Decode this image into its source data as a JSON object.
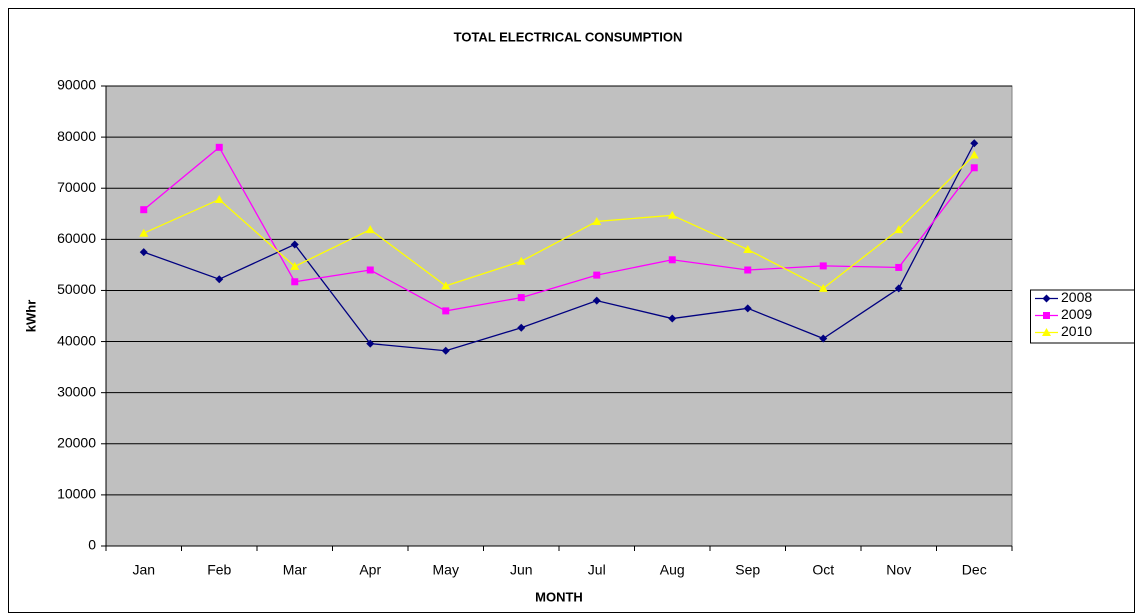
{
  "chart_data": {
    "type": "line",
    "title": "TOTAL ELECTRICAL CONSUMPTION",
    "x_label": "MONTH",
    "y_label": "kWhr",
    "categories": [
      "Jan",
      "Feb",
      "Mar",
      "Apr",
      "May",
      "Jun",
      "Jul",
      "Aug",
      "Sep",
      "Oct",
      "Nov",
      "Dec"
    ],
    "series": [
      {
        "name": "2008",
        "color": "#000080",
        "marker": "diamond",
        "values": [
          57500,
          52200,
          59000,
          39600,
          38200,
          42700,
          48000,
          44500,
          46500,
          40600,
          50400,
          78800
        ]
      },
      {
        "name": "2009",
        "color": "#ff00ff",
        "marker": "square",
        "values": [
          65800,
          78000,
          51700,
          54000,
          46000,
          48600,
          53000,
          56000,
          54000,
          54800,
          54500,
          74000
        ]
      },
      {
        "name": "2010",
        "color": "#ffff00",
        "marker": "triangle",
        "values": [
          61200,
          67800,
          54700,
          61900,
          50900,
          55700,
          63500,
          64700,
          58000,
          50400,
          61900,
          76500
        ]
      }
    ],
    "ylim": [
      0,
      90000
    ],
    "yticks": [
      0,
      10000,
      20000,
      30000,
      40000,
      50000,
      60000,
      70000,
      80000,
      90000
    ],
    "grid": true,
    "legend": "right",
    "plot_background": "#c0c0c0"
  }
}
